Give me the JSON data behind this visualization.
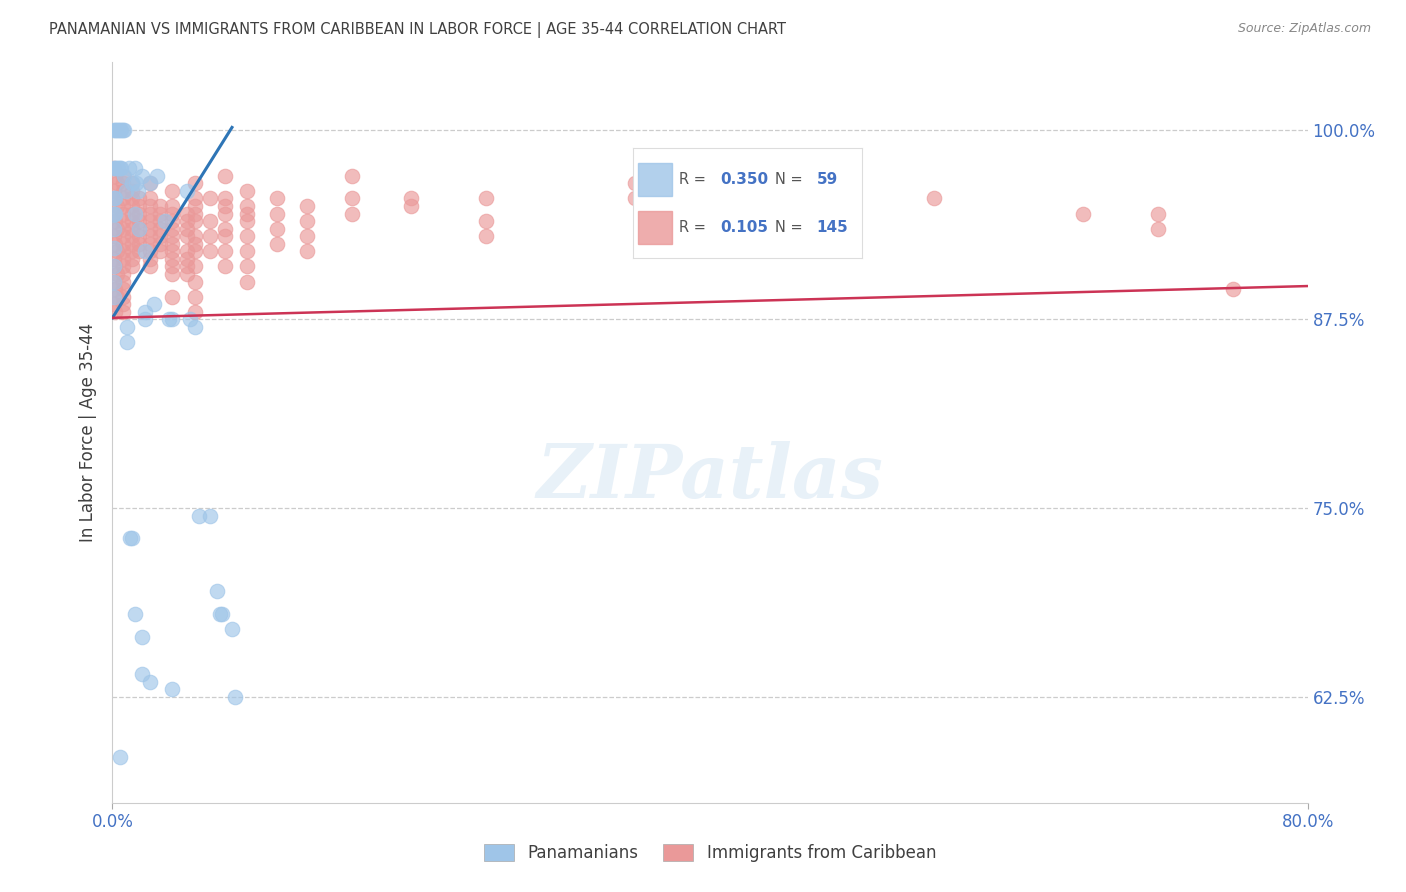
{
  "title": "PANAMANIAN VS IMMIGRANTS FROM CARIBBEAN IN LABOR FORCE | AGE 35-44 CORRELATION CHART",
  "source": "Source: ZipAtlas.com",
  "xlabel_bottom_left": "0.0%",
  "xlabel_bottom_right": "80.0%",
  "ylabel_label": "In Labor Force | Age 35-44",
  "ytick_labels": [
    "62.5%",
    "75.0%",
    "87.5%",
    "100.0%"
  ],
  "ytick_values": [
    0.625,
    0.75,
    0.875,
    1.0
  ],
  "xlim": [
    0.0,
    0.8
  ],
  "ylim": [
    0.555,
    1.045
  ],
  "blue_R": 0.35,
  "blue_N": 59,
  "pink_R": 0.105,
  "pink_N": 145,
  "legend_label_blue": "Panamanians",
  "legend_label_pink": "Immigrants from Caribbean",
  "blue_color": "#9fc5e8",
  "blue_edge_color": "#6fa8dc",
  "pink_color": "#ea9999",
  "pink_edge_color": "#e06666",
  "blue_line_color": "#2e75b6",
  "pink_line_color": "#cc3355",
  "blue_scatter": [
    [
      0.001,
      1.0
    ],
    [
      0.002,
      1.0
    ],
    [
      0.003,
      1.0
    ],
    [
      0.004,
      1.0
    ],
    [
      0.005,
      1.0
    ],
    [
      0.006,
      1.0
    ],
    [
      0.007,
      1.0
    ],
    [
      0.008,
      1.0
    ],
    [
      0.001,
      0.975
    ],
    [
      0.002,
      0.975
    ],
    [
      0.003,
      0.975
    ],
    [
      0.004,
      0.975
    ],
    [
      0.005,
      0.975
    ],
    [
      0.006,
      0.975
    ],
    [
      0.001,
      0.955
    ],
    [
      0.002,
      0.955
    ],
    [
      0.001,
      0.945
    ],
    [
      0.002,
      0.945
    ],
    [
      0.001,
      0.935
    ],
    [
      0.001,
      0.922
    ],
    [
      0.001,
      0.91
    ],
    [
      0.001,
      0.9
    ],
    [
      0.001,
      0.89
    ],
    [
      0.008,
      0.97
    ],
    [
      0.009,
      0.96
    ],
    [
      0.011,
      0.975
    ],
    [
      0.013,
      0.965
    ],
    [
      0.015,
      0.975
    ],
    [
      0.016,
      0.965
    ],
    [
      0.017,
      0.96
    ],
    [
      0.02,
      0.97
    ],
    [
      0.022,
      0.92
    ],
    [
      0.025,
      0.965
    ],
    [
      0.028,
      0.885
    ],
    [
      0.03,
      0.97
    ],
    [
      0.015,
      0.945
    ],
    [
      0.018,
      0.935
    ],
    [
      0.022,
      0.88
    ],
    [
      0.022,
      0.875
    ],
    [
      0.035,
      0.94
    ],
    [
      0.038,
      0.875
    ],
    [
      0.04,
      0.875
    ],
    [
      0.05,
      0.96
    ],
    [
      0.052,
      0.875
    ],
    [
      0.055,
      0.87
    ],
    [
      0.058,
      0.745
    ],
    [
      0.065,
      0.745
    ],
    [
      0.07,
      0.695
    ],
    [
      0.072,
      0.68
    ],
    [
      0.073,
      0.68
    ],
    [
      0.08,
      0.67
    ],
    [
      0.082,
      0.625
    ],
    [
      0.01,
      0.87
    ],
    [
      0.01,
      0.86
    ],
    [
      0.012,
      0.73
    ],
    [
      0.013,
      0.73
    ],
    [
      0.015,
      0.68
    ],
    [
      0.02,
      0.665
    ],
    [
      0.02,
      0.64
    ],
    [
      0.025,
      0.635
    ],
    [
      0.04,
      0.63
    ],
    [
      0.005,
      0.585
    ]
  ],
  "pink_scatter": [
    [
      0.001,
      0.975
    ],
    [
      0.002,
      0.97
    ],
    [
      0.003,
      0.965
    ],
    [
      0.001,
      0.96
    ],
    [
      0.002,
      0.955
    ],
    [
      0.003,
      0.95
    ],
    [
      0.001,
      0.945
    ],
    [
      0.002,
      0.94
    ],
    [
      0.003,
      0.935
    ],
    [
      0.001,
      0.93
    ],
    [
      0.002,
      0.925
    ],
    [
      0.003,
      0.92
    ],
    [
      0.001,
      0.915
    ],
    [
      0.002,
      0.91
    ],
    [
      0.003,
      0.905
    ],
    [
      0.001,
      0.9
    ],
    [
      0.002,
      0.895
    ],
    [
      0.003,
      0.89
    ],
    [
      0.001,
      0.885
    ],
    [
      0.002,
      0.88
    ],
    [
      0.007,
      0.97
    ],
    [
      0.007,
      0.965
    ],
    [
      0.007,
      0.96
    ],
    [
      0.007,
      0.955
    ],
    [
      0.007,
      0.95
    ],
    [
      0.007,
      0.945
    ],
    [
      0.007,
      0.94
    ],
    [
      0.007,
      0.935
    ],
    [
      0.007,
      0.93
    ],
    [
      0.007,
      0.925
    ],
    [
      0.007,
      0.92
    ],
    [
      0.007,
      0.915
    ],
    [
      0.007,
      0.91
    ],
    [
      0.007,
      0.905
    ],
    [
      0.007,
      0.9
    ],
    [
      0.007,
      0.895
    ],
    [
      0.007,
      0.89
    ],
    [
      0.007,
      0.885
    ],
    [
      0.007,
      0.88
    ],
    [
      0.013,
      0.965
    ],
    [
      0.013,
      0.96
    ],
    [
      0.013,
      0.955
    ],
    [
      0.013,
      0.95
    ],
    [
      0.013,
      0.945
    ],
    [
      0.013,
      0.94
    ],
    [
      0.013,
      0.935
    ],
    [
      0.013,
      0.93
    ],
    [
      0.013,
      0.925
    ],
    [
      0.013,
      0.92
    ],
    [
      0.013,
      0.915
    ],
    [
      0.013,
      0.91
    ],
    [
      0.018,
      0.955
    ],
    [
      0.018,
      0.95
    ],
    [
      0.018,
      0.945
    ],
    [
      0.018,
      0.94
    ],
    [
      0.018,
      0.935
    ],
    [
      0.018,
      0.93
    ],
    [
      0.018,
      0.925
    ],
    [
      0.018,
      0.92
    ],
    [
      0.025,
      0.965
    ],
    [
      0.025,
      0.955
    ],
    [
      0.025,
      0.95
    ],
    [
      0.025,
      0.945
    ],
    [
      0.025,
      0.94
    ],
    [
      0.025,
      0.935
    ],
    [
      0.025,
      0.93
    ],
    [
      0.025,
      0.925
    ],
    [
      0.025,
      0.92
    ],
    [
      0.025,
      0.915
    ],
    [
      0.025,
      0.91
    ],
    [
      0.032,
      0.95
    ],
    [
      0.032,
      0.945
    ],
    [
      0.032,
      0.94
    ],
    [
      0.032,
      0.935
    ],
    [
      0.032,
      0.93
    ],
    [
      0.032,
      0.925
    ],
    [
      0.032,
      0.92
    ],
    [
      0.04,
      0.96
    ],
    [
      0.04,
      0.95
    ],
    [
      0.04,
      0.945
    ],
    [
      0.04,
      0.94
    ],
    [
      0.04,
      0.935
    ],
    [
      0.04,
      0.93
    ],
    [
      0.04,
      0.925
    ],
    [
      0.04,
      0.92
    ],
    [
      0.04,
      0.915
    ],
    [
      0.04,
      0.91
    ],
    [
      0.04,
      0.905
    ],
    [
      0.04,
      0.89
    ],
    [
      0.05,
      0.945
    ],
    [
      0.05,
      0.94
    ],
    [
      0.05,
      0.935
    ],
    [
      0.05,
      0.93
    ],
    [
      0.05,
      0.92
    ],
    [
      0.05,
      0.915
    ],
    [
      0.05,
      0.91
    ],
    [
      0.05,
      0.905
    ],
    [
      0.055,
      0.965
    ],
    [
      0.055,
      0.955
    ],
    [
      0.055,
      0.95
    ],
    [
      0.055,
      0.945
    ],
    [
      0.055,
      0.94
    ],
    [
      0.055,
      0.93
    ],
    [
      0.055,
      0.925
    ],
    [
      0.055,
      0.92
    ],
    [
      0.055,
      0.91
    ],
    [
      0.055,
      0.9
    ],
    [
      0.055,
      0.89
    ],
    [
      0.055,
      0.88
    ],
    [
      0.065,
      0.955
    ],
    [
      0.065,
      0.94
    ],
    [
      0.065,
      0.93
    ],
    [
      0.065,
      0.92
    ],
    [
      0.075,
      0.97
    ],
    [
      0.075,
      0.955
    ],
    [
      0.075,
      0.95
    ],
    [
      0.075,
      0.945
    ],
    [
      0.075,
      0.935
    ],
    [
      0.075,
      0.93
    ],
    [
      0.075,
      0.92
    ],
    [
      0.075,
      0.91
    ],
    [
      0.09,
      0.96
    ],
    [
      0.09,
      0.95
    ],
    [
      0.09,
      0.945
    ],
    [
      0.09,
      0.94
    ],
    [
      0.09,
      0.93
    ],
    [
      0.09,
      0.92
    ],
    [
      0.09,
      0.91
    ],
    [
      0.09,
      0.9
    ],
    [
      0.11,
      0.955
    ],
    [
      0.11,
      0.945
    ],
    [
      0.11,
      0.935
    ],
    [
      0.11,
      0.925
    ],
    [
      0.13,
      0.95
    ],
    [
      0.13,
      0.94
    ],
    [
      0.13,
      0.93
    ],
    [
      0.13,
      0.92
    ],
    [
      0.16,
      0.97
    ],
    [
      0.16,
      0.955
    ],
    [
      0.16,
      0.945
    ],
    [
      0.2,
      0.955
    ],
    [
      0.2,
      0.95
    ],
    [
      0.25,
      0.955
    ],
    [
      0.25,
      0.94
    ],
    [
      0.25,
      0.93
    ],
    [
      0.35,
      0.965
    ],
    [
      0.35,
      0.955
    ],
    [
      0.45,
      0.96
    ],
    [
      0.45,
      0.95
    ],
    [
      0.55,
      0.955
    ],
    [
      0.65,
      0.945
    ],
    [
      0.7,
      0.945
    ],
    [
      0.7,
      0.935
    ],
    [
      0.75,
      0.895
    ]
  ],
  "watermark_text": "ZIPatlas",
  "background_color": "#ffffff",
  "grid_color": "#cccccc",
  "title_color": "#404040",
  "right_tick_color": "#4472c4"
}
